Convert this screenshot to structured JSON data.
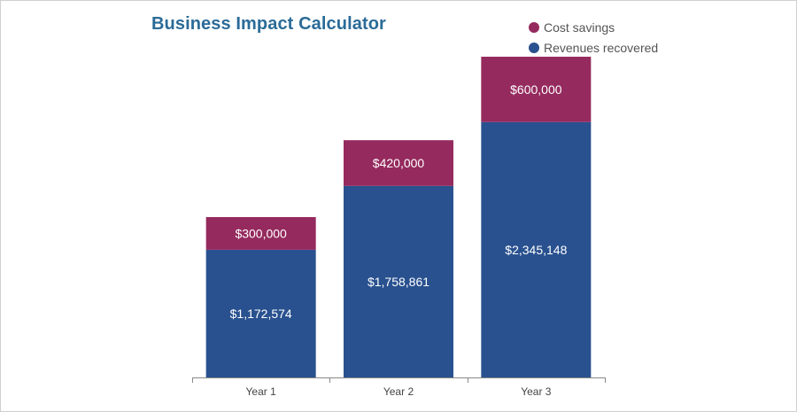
{
  "title": "Business Impact Calculator",
  "colors": {
    "cost_savings": "#952a5e",
    "revenues_recovered": "#29518f",
    "title": "#2b6b98",
    "axis": "#888888"
  },
  "legend": {
    "cost_savings": "Cost savings",
    "revenues_recovered": "Revenues recovered"
  },
  "chart_data": {
    "type": "bar",
    "stacked": true,
    "title": "Business Impact Calculator",
    "xlabel": "",
    "ylabel": "",
    "categories": [
      "Year 1",
      "Year 2",
      "Year 3"
    ],
    "series": [
      {
        "name": "Revenues recovered",
        "values": [
          1172574,
          1758861,
          2345148
        ],
        "labels": [
          "$1,172,574",
          "$1,758,861",
          "$2,345,148"
        ]
      },
      {
        "name": "Cost savings",
        "values": [
          300000,
          420000,
          600000
        ],
        "labels": [
          "$300,000",
          "$420,000",
          "$600,000"
        ]
      }
    ],
    "ylim": [
      0,
      3100000
    ],
    "grid": false,
    "legend_position": "top-right"
  }
}
